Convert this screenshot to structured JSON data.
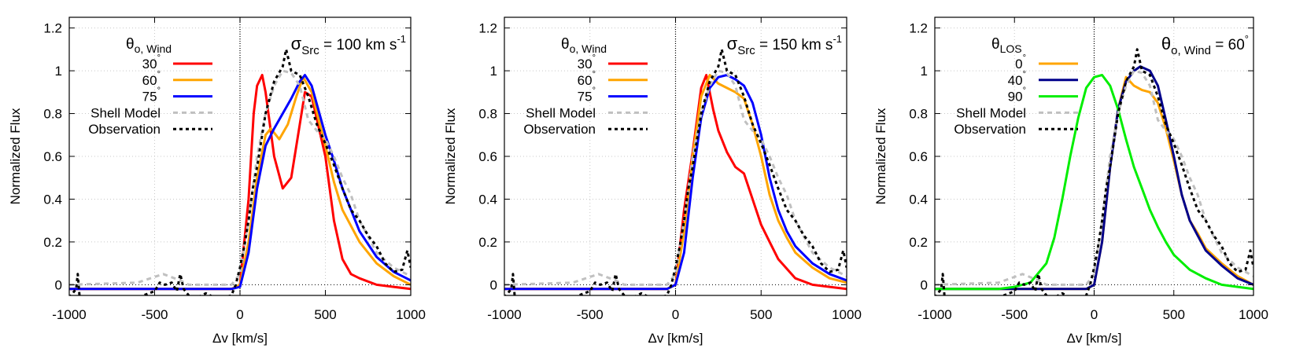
{
  "chart_data": [
    {
      "type": "line",
      "xlabel": "Δv [km/s]",
      "ylabel": "Normalized Flux",
      "xlim": [
        -1000,
        1000
      ],
      "ylim": [
        -0.05,
        1.25
      ],
      "xticks": [
        "-1000",
        "-500",
        "0",
        "500",
        "1000"
      ],
      "yticks": [
        "0",
        "0.2",
        "0.4",
        "0.6",
        "0.8",
        "1",
        "1.2"
      ],
      "grid": true,
      "legend_placement": "top-left",
      "legend_title": {
        "main": "θ",
        "sub": "o, Wind"
      },
      "annotation": {
        "symbol": "σ",
        "sub": "Src",
        "text": " = 100 km s",
        "sup": "-1"
      },
      "series": [
        {
          "name": "30°",
          "color": "#ff0000",
          "style": "solid",
          "x": [
            -1000,
            -50,
            0,
            50,
            80,
            100,
            130,
            150,
            200,
            250,
            300,
            350,
            380,
            420,
            500,
            550,
            600,
            650,
            700,
            800,
            900,
            1000
          ],
          "y": [
            -0.02,
            -0.02,
            0.0,
            0.4,
            0.8,
            0.93,
            0.98,
            0.9,
            0.6,
            0.45,
            0.5,
            0.75,
            0.9,
            0.88,
            0.6,
            0.3,
            0.12,
            0.05,
            0.03,
            0.0,
            -0.01,
            -0.02
          ]
        },
        {
          "name": "60°",
          "color": "#ffa500",
          "style": "solid",
          "x": [
            -1000,
            -50,
            0,
            50,
            100,
            150,
            180,
            230,
            280,
            330,
            370,
            420,
            500,
            550,
            600,
            700,
            800,
            900,
            1000
          ],
          "y": [
            -0.02,
            -0.02,
            0.0,
            0.2,
            0.5,
            0.7,
            0.73,
            0.68,
            0.75,
            0.88,
            0.97,
            0.9,
            0.65,
            0.48,
            0.35,
            0.2,
            0.1,
            0.04,
            0.0
          ]
        },
        {
          "name": "75°",
          "color": "#0000ff",
          "style": "solid",
          "x": [
            -1000,
            -50,
            0,
            50,
            100,
            150,
            200,
            250,
            300,
            350,
            380,
            420,
            500,
            550,
            600,
            700,
            800,
            900,
            1000
          ],
          "y": [
            -0.02,
            -0.02,
            -0.01,
            0.15,
            0.45,
            0.65,
            0.73,
            0.8,
            0.87,
            0.95,
            0.98,
            0.93,
            0.7,
            0.58,
            0.45,
            0.25,
            0.13,
            0.06,
            0.02
          ]
        },
        {
          "name": "Shell Model",
          "color": "#c0c0c0",
          "style": "dashed",
          "x": [
            -1000,
            -600,
            -450,
            -350,
            -300,
            -50,
            0,
            50,
            100,
            150,
            200,
            250,
            300,
            350,
            400,
            450,
            500,
            550,
            600,
            650,
            700,
            800,
            900,
            1000
          ],
          "y": [
            0,
            0.01,
            0.05,
            0.02,
            0,
            0,
            0.05,
            0.3,
            0.6,
            0.8,
            0.93,
            1.0,
            0.99,
            0.93,
            0.77,
            0.72,
            0.68,
            0.6,
            0.5,
            0.42,
            0.3,
            0.15,
            0.08,
            0.04
          ]
        },
        {
          "name": "Observation",
          "color": "#000000",
          "style": "dotted",
          "x": [
            -1000,
            -960,
            -950,
            -940,
            -900,
            -800,
            -700,
            -600,
            -500,
            -470,
            -440,
            -400,
            -370,
            -350,
            -330,
            -300,
            -250,
            -200,
            -150,
            -100,
            -50,
            -25,
            0,
            25,
            50,
            75,
            100,
            150,
            200,
            250,
            270,
            300,
            350,
            400,
            450,
            500,
            550,
            600,
            650,
            700,
            750,
            800,
            850,
            900,
            950,
            980,
            1000
          ],
          "y": [
            -0.06,
            -0.02,
            0.05,
            -0.05,
            -0.06,
            -0.06,
            -0.06,
            -0.06,
            -0.03,
            0.01,
            0.0,
            0.01,
            -0.03,
            0.05,
            -0.02,
            -0.05,
            -0.06,
            -0.04,
            -0.06,
            -0.06,
            -0.05,
            0.0,
            0.08,
            0.18,
            0.3,
            0.45,
            0.55,
            0.8,
            0.95,
            1.02,
            1.1,
            1.0,
            0.98,
            0.88,
            0.75,
            0.66,
            0.56,
            0.45,
            0.35,
            0.3,
            0.23,
            0.18,
            0.1,
            0.06,
            0.07,
            0.16,
            0.08
          ]
        }
      ]
    },
    {
      "type": "line",
      "xlabel": "Δv [km/s]",
      "ylabel": "Normalized Flux",
      "xlim": [
        -1000,
        1000
      ],
      "ylim": [
        -0.05,
        1.25
      ],
      "xticks": [
        "-1000",
        "-500",
        "0",
        "500",
        "1000"
      ],
      "yticks": [
        "0",
        "0.2",
        "0.4",
        "0.6",
        "0.8",
        "1",
        "1.2"
      ],
      "grid": true,
      "legend_placement": "top-left",
      "legend_title": {
        "main": "θ",
        "sub": "o, Wind"
      },
      "annotation": {
        "symbol": "σ",
        "sub": "Src",
        "text": " = 150 km s",
        "sup": "-1"
      },
      "series": [
        {
          "name": "30°",
          "color": "#ff0000",
          "style": "solid",
          "x": [
            -1000,
            -50,
            0,
            50,
            100,
            150,
            180,
            220,
            250,
            300,
            350,
            400,
            450,
            500,
            550,
            600,
            700,
            800,
            900,
            1000
          ],
          "y": [
            -0.02,
            -0.02,
            0,
            0.35,
            0.62,
            0.92,
            0.98,
            0.82,
            0.72,
            0.62,
            0.55,
            0.52,
            0.4,
            0.28,
            0.2,
            0.12,
            0.03,
            0.0,
            -0.01,
            -0.02
          ]
        },
        {
          "name": "60°",
          "color": "#ffa500",
          "style": "solid",
          "x": [
            -1000,
            -50,
            0,
            50,
            100,
            150,
            200,
            250,
            300,
            350,
            400,
            450,
            500,
            550,
            600,
            650,
            700,
            800,
            900,
            1000
          ],
          "y": [
            -0.02,
            -0.02,
            0,
            0.25,
            0.6,
            0.88,
            0.98,
            0.94,
            0.92,
            0.9,
            0.87,
            0.75,
            0.6,
            0.42,
            0.3,
            0.22,
            0.15,
            0.08,
            0.03,
            0.01
          ]
        },
        {
          "name": "75°",
          "color": "#0000ff",
          "style": "solid",
          "x": [
            -1000,
            -50,
            0,
            50,
            100,
            150,
            200,
            250,
            300,
            350,
            400,
            450,
            500,
            550,
            600,
            650,
            700,
            800,
            900,
            1000
          ],
          "y": [
            -0.02,
            -0.02,
            0,
            0.15,
            0.5,
            0.78,
            0.92,
            0.97,
            0.98,
            0.96,
            0.93,
            0.85,
            0.7,
            0.5,
            0.35,
            0.25,
            0.18,
            0.1,
            0.05,
            0.02
          ]
        },
        {
          "name": "Shell Model",
          "color": "#c0c0c0",
          "style": "dashed",
          "x": [
            -1000,
            -600,
            -450,
            -350,
            -300,
            -50,
            0,
            50,
            100,
            150,
            200,
            250,
            300,
            350,
            400,
            450,
            500,
            550,
            600,
            650,
            700,
            800,
            900,
            1000
          ],
          "y": [
            0,
            0.01,
            0.05,
            0.02,
            0,
            0,
            0.05,
            0.3,
            0.6,
            0.8,
            0.93,
            1.0,
            0.99,
            0.93,
            0.77,
            0.72,
            0.68,
            0.6,
            0.5,
            0.42,
            0.3,
            0.15,
            0.08,
            0.04
          ]
        },
        {
          "name": "Observation",
          "color": "#000000",
          "style": "dotted",
          "x": [
            -1000,
            -960,
            -950,
            -940,
            -900,
            -800,
            -700,
            -600,
            -500,
            -470,
            -440,
            -400,
            -370,
            -350,
            -330,
            -300,
            -250,
            -200,
            -150,
            -100,
            -50,
            -25,
            0,
            25,
            50,
            75,
            100,
            150,
            200,
            250,
            270,
            300,
            350,
            400,
            450,
            500,
            550,
            600,
            650,
            700,
            750,
            800,
            850,
            900,
            950,
            980,
            1000
          ],
          "y": [
            -0.06,
            -0.02,
            0.05,
            -0.05,
            -0.06,
            -0.06,
            -0.06,
            -0.06,
            -0.03,
            0.01,
            0.0,
            0.01,
            -0.03,
            0.05,
            -0.02,
            -0.05,
            -0.06,
            -0.04,
            -0.06,
            -0.06,
            -0.05,
            0.0,
            0.08,
            0.18,
            0.3,
            0.45,
            0.55,
            0.8,
            0.95,
            1.02,
            1.1,
            1.0,
            0.98,
            0.88,
            0.75,
            0.66,
            0.56,
            0.45,
            0.35,
            0.3,
            0.23,
            0.18,
            0.1,
            0.06,
            0.07,
            0.16,
            0.08
          ]
        }
      ]
    },
    {
      "type": "line",
      "xlabel": "Δv [km/s]",
      "ylabel": "Normalized Flux",
      "xlim": [
        -1000,
        1000
      ],
      "ylim": [
        -0.05,
        1.25
      ],
      "xticks": [
        "-1000",
        "-500",
        "0",
        "500",
        "1000"
      ],
      "yticks": [
        "0",
        "0.2",
        "0.4",
        "0.6",
        "0.8",
        "1",
        "1.2"
      ],
      "grid": true,
      "legend_placement": "top-left",
      "legend_title": {
        "main": "θ",
        "sub": "LOS"
      },
      "annotation": {
        "symbol": "θ",
        "sub": "o, Wind",
        "text": " = 60",
        "sup": "°"
      },
      "series": [
        {
          "name": "0°",
          "color": "#ffa500",
          "style": "solid",
          "x": [
            -1000,
            -50,
            0,
            50,
            100,
            150,
            200,
            250,
            300,
            350,
            400,
            450,
            500,
            550,
            600,
            650,
            700,
            800,
            900,
            1000
          ],
          "y": [
            -0.02,
            -0.02,
            0,
            0.2,
            0.55,
            0.82,
            0.97,
            0.93,
            0.91,
            0.9,
            0.85,
            0.73,
            0.58,
            0.42,
            0.3,
            0.24,
            0.17,
            0.1,
            0.04,
            0.0
          ]
        },
        {
          "name": "40°",
          "color": "#00008b",
          "style": "solid",
          "x": [
            -1000,
            -50,
            0,
            50,
            100,
            150,
            200,
            250,
            290,
            350,
            400,
            450,
            500,
            550,
            600,
            650,
            700,
            800,
            900,
            1000
          ],
          "y": [
            -0.02,
            -0.02,
            0,
            0.2,
            0.55,
            0.82,
            0.95,
            1.0,
            1.02,
            1.0,
            0.93,
            0.77,
            0.6,
            0.42,
            0.3,
            0.23,
            0.16,
            0.09,
            0.03,
            0.0
          ]
        },
        {
          "name": "90°",
          "color": "#00ee00",
          "style": "solid",
          "x": [
            -1000,
            -600,
            -500,
            -400,
            -300,
            -250,
            -200,
            -150,
            -100,
            -50,
            0,
            50,
            100,
            150,
            200,
            250,
            300,
            350,
            400,
            450,
            500,
            600,
            700,
            800,
            900,
            1000
          ],
          "y": [
            -0.02,
            -0.02,
            -0.01,
            0.01,
            0.1,
            0.22,
            0.4,
            0.6,
            0.78,
            0.92,
            0.97,
            0.98,
            0.93,
            0.82,
            0.68,
            0.55,
            0.45,
            0.35,
            0.27,
            0.2,
            0.14,
            0.07,
            0.03,
            0.0,
            -0.01,
            -0.02
          ]
        },
        {
          "name": "Shell Model",
          "color": "#c0c0c0",
          "style": "dashed",
          "x": [
            -1000,
            -600,
            -450,
            -350,
            -300,
            -50,
            0,
            50,
            100,
            150,
            200,
            250,
            300,
            350,
            400,
            450,
            500,
            550,
            600,
            650,
            700,
            800,
            900,
            1000
          ],
          "y": [
            0,
            0.01,
            0.05,
            0.02,
            0,
            0,
            0.05,
            0.3,
            0.6,
            0.8,
            0.93,
            1.0,
            0.99,
            0.93,
            0.77,
            0.72,
            0.68,
            0.6,
            0.5,
            0.42,
            0.3,
            0.15,
            0.08,
            0.04
          ]
        },
        {
          "name": "Observation",
          "color": "#000000",
          "style": "dotted",
          "x": [
            -1000,
            -960,
            -950,
            -940,
            -900,
            -800,
            -700,
            -600,
            -500,
            -470,
            -440,
            -400,
            -370,
            -350,
            -330,
            -300,
            -250,
            -200,
            -150,
            -100,
            -50,
            -25,
            0,
            25,
            50,
            75,
            100,
            150,
            200,
            250,
            270,
            300,
            350,
            400,
            450,
            500,
            550,
            600,
            650,
            700,
            750,
            800,
            850,
            900,
            950,
            980,
            1000
          ],
          "y": [
            -0.06,
            -0.02,
            0.05,
            -0.05,
            -0.06,
            -0.06,
            -0.06,
            -0.06,
            -0.03,
            0.01,
            0.0,
            0.01,
            -0.03,
            0.05,
            -0.02,
            -0.05,
            -0.06,
            -0.04,
            -0.06,
            -0.06,
            -0.05,
            0.0,
            0.08,
            0.18,
            0.3,
            0.45,
            0.55,
            0.8,
            0.95,
            1.02,
            1.1,
            1.0,
            0.98,
            0.88,
            0.75,
            0.66,
            0.56,
            0.45,
            0.35,
            0.3,
            0.23,
            0.18,
            0.1,
            0.06,
            0.07,
            0.16,
            0.08
          ]
        }
      ]
    }
  ]
}
